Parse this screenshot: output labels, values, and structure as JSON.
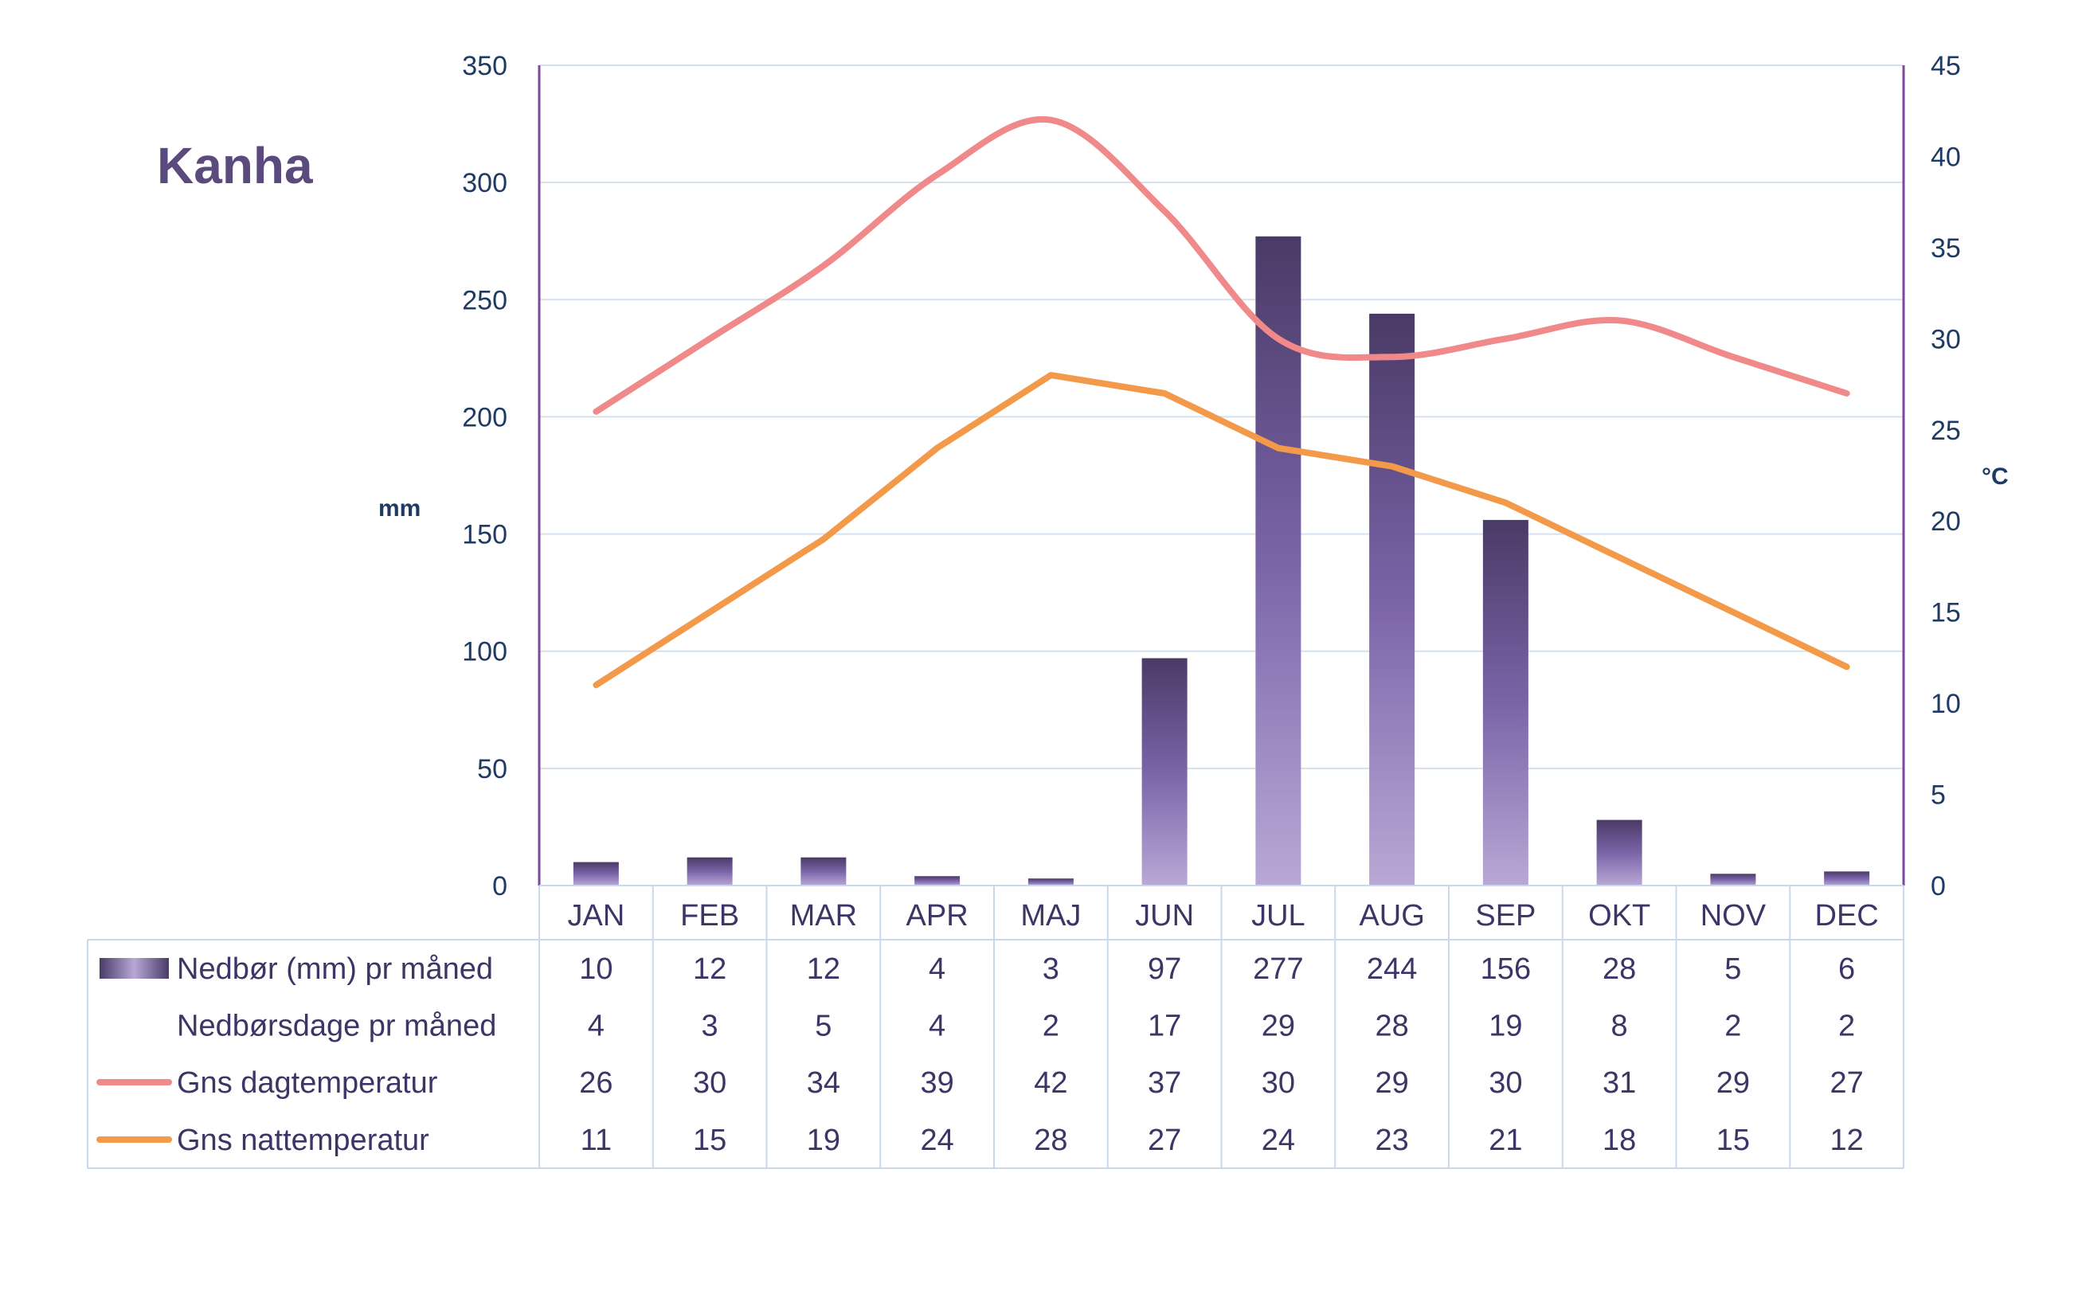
{
  "chart_data": {
    "type": "bar",
    "title": "Kanha",
    "ylabel": "mm",
    "y2label": "°C",
    "ylim": [
      0,
      350
    ],
    "y2lim": [
      0,
      45
    ],
    "yticks": [
      0,
      50,
      100,
      150,
      200,
      250,
      300,
      350
    ],
    "y2ticks": [
      0,
      5,
      10,
      15,
      20,
      25,
      30,
      35,
      40,
      45
    ],
    "categories": [
      "JAN",
      "FEB",
      "MAR",
      "APR",
      "MAJ",
      "JUN",
      "JUL",
      "AUG",
      "SEP",
      "OKT",
      "NOV",
      "DEC"
    ],
    "series": [
      {
        "name": "Nedbør (mm) pr måned",
        "type": "bar",
        "axis": "left",
        "color": "#5b4a84",
        "values": [
          10,
          12,
          12,
          4,
          3,
          97,
          277,
          244,
          156,
          28,
          5,
          6
        ]
      },
      {
        "name": "Nedbørsdage pr måned",
        "type": "table-only",
        "values": [
          4,
          3,
          5,
          4,
          2,
          17,
          29,
          28,
          19,
          8,
          2,
          2
        ]
      },
      {
        "name": "Gns dagtemperatur",
        "type": "line",
        "axis": "right",
        "color": "#f08a8a",
        "values": [
          26,
          30,
          34,
          39,
          42,
          37,
          30,
          29,
          30,
          31,
          29,
          27
        ]
      },
      {
        "name": "Gns nattemperatur",
        "type": "line",
        "axis": "right",
        "color": "#f39a4a",
        "values": [
          11,
          15,
          19,
          24,
          28,
          27,
          24,
          23,
          21,
          18,
          15,
          12
        ]
      }
    ],
    "grid": true,
    "legend": "data-table"
  }
}
